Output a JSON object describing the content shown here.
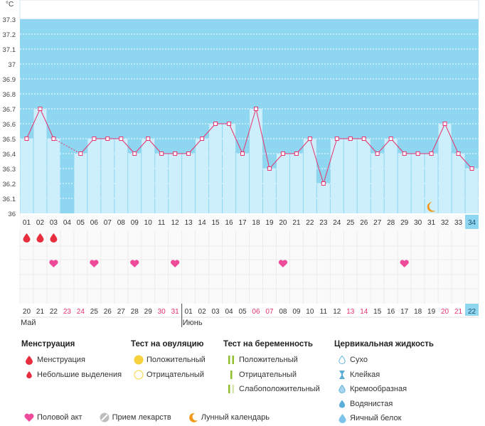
{
  "chart_data": {
    "type": "line",
    "ylabel": "°C",
    "ylim": [
      36,
      37.3
    ],
    "yticks": [
      "36",
      "36.1",
      "36.2",
      "36.3",
      "36.4",
      "36.5",
      "36.6",
      "36.7",
      "36.8",
      "36.9",
      "37",
      "37.1",
      "37.2",
      "37.3"
    ],
    "cycle_days": [
      "01",
      "02",
      "03",
      "04",
      "05",
      "06",
      "07",
      "08",
      "09",
      "10",
      "11",
      "12",
      "13",
      "14",
      "15",
      "16",
      "17",
      "18",
      "19",
      "20",
      "21",
      "22",
      "23",
      "24",
      "25",
      "26",
      "27",
      "28",
      "29",
      "30",
      "31",
      "32",
      "33",
      "34"
    ],
    "dates": [
      "20",
      "21",
      "22",
      "23",
      "24",
      "25",
      "26",
      "27",
      "28",
      "29",
      "30",
      "31",
      "01",
      "02",
      "03",
      "04",
      "05",
      "06",
      "07",
      "08",
      "09",
      "10",
      "11",
      "12",
      "13",
      "14",
      "15",
      "16",
      "17",
      "18",
      "19",
      "20",
      "21",
      "22"
    ],
    "weekend_dates": [
      3,
      4,
      10,
      11,
      17,
      18,
      24,
      25,
      31,
      32
    ],
    "month_labels": [
      {
        "label": "Май",
        "start": 0
      },
      {
        "label": "Июнь",
        "start": 12
      }
    ],
    "values": [
      36.5,
      36.7,
      36.5,
      null,
      36.4,
      36.5,
      36.5,
      36.5,
      36.4,
      36.5,
      36.4,
      36.4,
      36.4,
      36.5,
      36.6,
      36.6,
      36.4,
      36.7,
      36.3,
      36.4,
      36.4,
      36.5,
      36.2,
      36.5,
      36.5,
      36.5,
      36.4,
      36.5,
      36.4,
      36.4,
      36.4,
      36.6,
      36.4,
      36.3
    ],
    "interpolated_segments": [
      [
        2,
        4
      ]
    ],
    "menstruation_days": [
      0,
      1,
      2
    ],
    "intercourse_days": [
      2,
      5,
      8,
      11,
      19,
      28
    ],
    "lunar_days": [
      30
    ],
    "current_day": 33,
    "colors": {
      "band": "#8fd6f1",
      "bar": "#cdeefb",
      "line": "#e8336e",
      "weekend": "#e8336e",
      "current": "#8fd6f1",
      "heart": "#ee4b9a",
      "drop": "#e82e3e",
      "moon": "#f29a1c"
    }
  },
  "legend": {
    "menstruation": {
      "title": "Менструация",
      "items": [
        "Менструация",
        "Небольшие выделения"
      ]
    },
    "ovulation_test": {
      "title": "Тест на овуляцию",
      "items": [
        "Положительный",
        "Отрицательный"
      ]
    },
    "pregnancy_test": {
      "title": "Тест на беременность",
      "items": [
        "Положительный",
        "Отрицательный",
        "Слабоположительный"
      ]
    },
    "cervical_fluid": {
      "title": "Цервикальная жидкость",
      "items": [
        "Сухо",
        "Клейкая",
        "Кремообразная",
        "Водянистая",
        "Яичный белок"
      ]
    },
    "bottom": [
      "Половой акт",
      "Прием лекарств",
      "Лунный календарь"
    ]
  }
}
